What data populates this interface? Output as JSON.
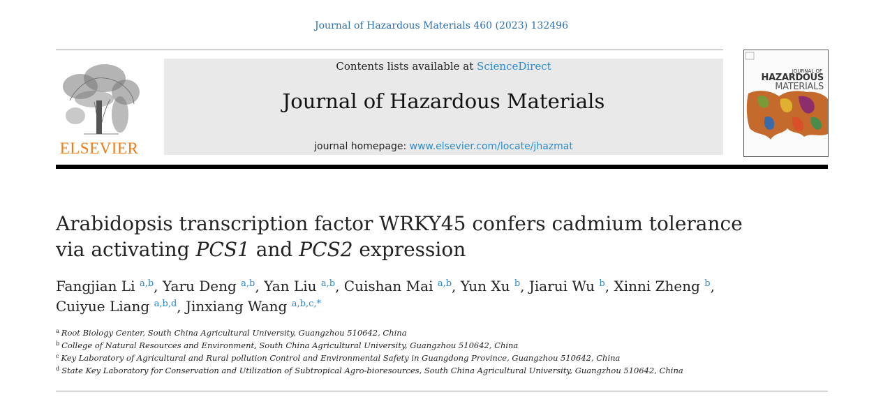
{
  "header": {
    "journal_ref": "Journal of Hazardous Materials 460 (2023) 132496"
  },
  "publisher": {
    "name": "ELSEVIER"
  },
  "masthead": {
    "contents_prefix": "Contents lists available at ",
    "contents_link": "ScienceDirect",
    "journal_title": "Journal of Hazardous Materials",
    "homepage_prefix": "journal homepage: ",
    "homepage_link": "www.elsevier.com/locate/jhazmat"
  },
  "cover": {
    "small": "JOURNAL OF",
    "line1": "HAZARDOUS",
    "line2": "MATERIALS"
  },
  "article": {
    "title_part1": "Arabidopsis transcription factor WRKY45 confers cadmium tolerance via activating ",
    "title_gene1": "PCS1",
    "title_and": " and ",
    "title_gene2": "PCS2",
    "title_part2": " expression",
    "authors": [
      {
        "name": "Fangjian Li",
        "aff": "a,b"
      },
      {
        "name": "Yaru Deng",
        "aff": "a,b"
      },
      {
        "name": "Yan Liu",
        "aff": "a,b"
      },
      {
        "name": "Cuishan Mai",
        "aff": "a,b"
      },
      {
        "name": "Yun Xu",
        "aff": "b"
      },
      {
        "name": "Jiarui Wu",
        "aff": "b"
      },
      {
        "name": "Xinni Zheng",
        "aff": "b"
      },
      {
        "name": "Cuiyue Liang",
        "aff": "a,b,d"
      },
      {
        "name": "Jinxiang Wang",
        "aff": "a,b,c,*"
      }
    ],
    "affiliations": [
      {
        "key": "a",
        "text": "Root Biology Center, South China Agricultural University, Guangzhou 510642, China"
      },
      {
        "key": "b",
        "text": "College of Natural Resources and Environment, South China Agricultural University, Guangzhou 510642, China"
      },
      {
        "key": "c",
        "text": "Key Laboratory of Agricultural and Rural pollution Control and Environmental Safety in Guangdong Province, Guangzhou 510642, China"
      },
      {
        "key": "d",
        "text": "State Key Laboratory for Conservation and Utilization of Subtropical Agro-bioresources, South China Agricultural University, Guangzhou 510642, China"
      }
    ]
  },
  "colors": {
    "link": "#2a8bd0",
    "elsevier_orange": "#f07a13",
    "masthead_bg": "#e9e9e9"
  }
}
